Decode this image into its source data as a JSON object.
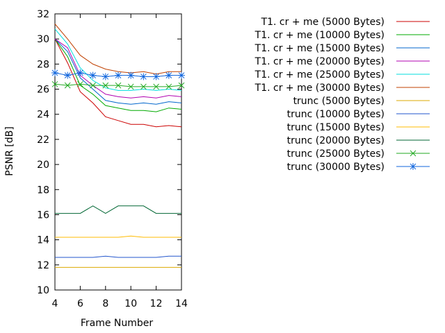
{
  "chart_data": {
    "type": "line",
    "xlabel": "Frame Number",
    "ylabel": "PSNR [dB]",
    "xlim": [
      4,
      14
    ],
    "ylim": [
      10,
      32
    ],
    "x_ticks": [
      4,
      6,
      8,
      10,
      12,
      14
    ],
    "y_ticks": [
      10,
      12,
      14,
      16,
      18,
      20,
      22,
      24,
      26,
      28,
      30,
      32
    ],
    "legend_position": "top-right, outside plot",
    "x": [
      4,
      5,
      6,
      7,
      8,
      9,
      10,
      11,
      12,
      13,
      14
    ],
    "series": [
      {
        "name": "T1. cr + me (5000 Bytes)",
        "color": "#cc0000",
        "marker": "none",
        "values": [
          30.0,
          28.1,
          25.8,
          24.9,
          23.8,
          23.5,
          23.2,
          23.2,
          23.0,
          23.1,
          23.0
        ]
      },
      {
        "name": "T1. cr + me (10000 Bytes)",
        "color": "#00aa00",
        "marker": "none",
        "values": [
          30.0,
          28.6,
          26.3,
          25.6,
          24.7,
          24.5,
          24.3,
          24.3,
          24.2,
          24.5,
          24.4
        ]
      },
      {
        "name": "T1. cr + me (15000 Bytes)",
        "color": "#0066cc",
        "marker": "none",
        "values": [
          30.0,
          29.0,
          26.9,
          26.0,
          25.1,
          24.9,
          24.8,
          24.9,
          24.8,
          25.0,
          24.9
        ]
      },
      {
        "name": "T1. cr + me (20000 Bytes)",
        "color": "#b000b0",
        "marker": "none",
        "values": [
          30.0,
          29.3,
          27.1,
          26.3,
          25.6,
          25.4,
          25.3,
          25.4,
          25.3,
          25.5,
          25.4
        ]
      },
      {
        "name": "T1. cr + me (25000 Bytes)",
        "color": "#00dddd",
        "marker": "none",
        "values": [
          30.8,
          29.6,
          27.7,
          26.7,
          26.1,
          25.9,
          25.9,
          26.0,
          25.9,
          26.0,
          25.9
        ]
      },
      {
        "name": "T1. cr + me (30000 Bytes)",
        "color": "#c04000",
        "marker": "none",
        "values": [
          31.2,
          30.0,
          28.7,
          28.0,
          27.6,
          27.4,
          27.3,
          27.4,
          27.2,
          27.4,
          27.4
        ]
      },
      {
        "name": "trunc (5000 Bytes)",
        "color": "#ddaa00",
        "marker": "none",
        "values": [
          11.8,
          11.8,
          11.8,
          11.8,
          11.8,
          11.8,
          11.8,
          11.8,
          11.8,
          11.8,
          11.8
        ]
      },
      {
        "name": "trunc (10000 Bytes)",
        "color": "#2255cc",
        "marker": "none",
        "values": [
          12.6,
          12.6,
          12.6,
          12.6,
          12.7,
          12.6,
          12.6,
          12.6,
          12.6,
          12.7,
          12.7
        ]
      },
      {
        "name": "trunc (15000 Bytes)",
        "color": "#ffbb00",
        "marker": "none",
        "values": [
          14.2,
          14.2,
          14.2,
          14.2,
          14.2,
          14.2,
          14.3,
          14.2,
          14.2,
          14.2,
          14.2
        ]
      },
      {
        "name": "trunc (20000 Bytes)",
        "color": "#006633",
        "marker": "none",
        "values": [
          16.1,
          16.1,
          16.1,
          16.7,
          16.1,
          16.7,
          16.7,
          16.7,
          16.1,
          16.1,
          16.1
        ]
      },
      {
        "name": "trunc (25000 Bytes)",
        "color": "#22aa22",
        "marker": "x",
        "values": [
          26.4,
          26.3,
          26.4,
          26.3,
          26.3,
          26.3,
          26.2,
          26.2,
          26.2,
          26.2,
          26.3
        ]
      },
      {
        "name": "trunc (30000 Bytes)",
        "color": "#1166dd",
        "marker": "star",
        "values": [
          27.3,
          27.1,
          27.3,
          27.1,
          27.0,
          27.1,
          27.1,
          27.0,
          27.0,
          27.1,
          27.1
        ]
      }
    ]
  }
}
